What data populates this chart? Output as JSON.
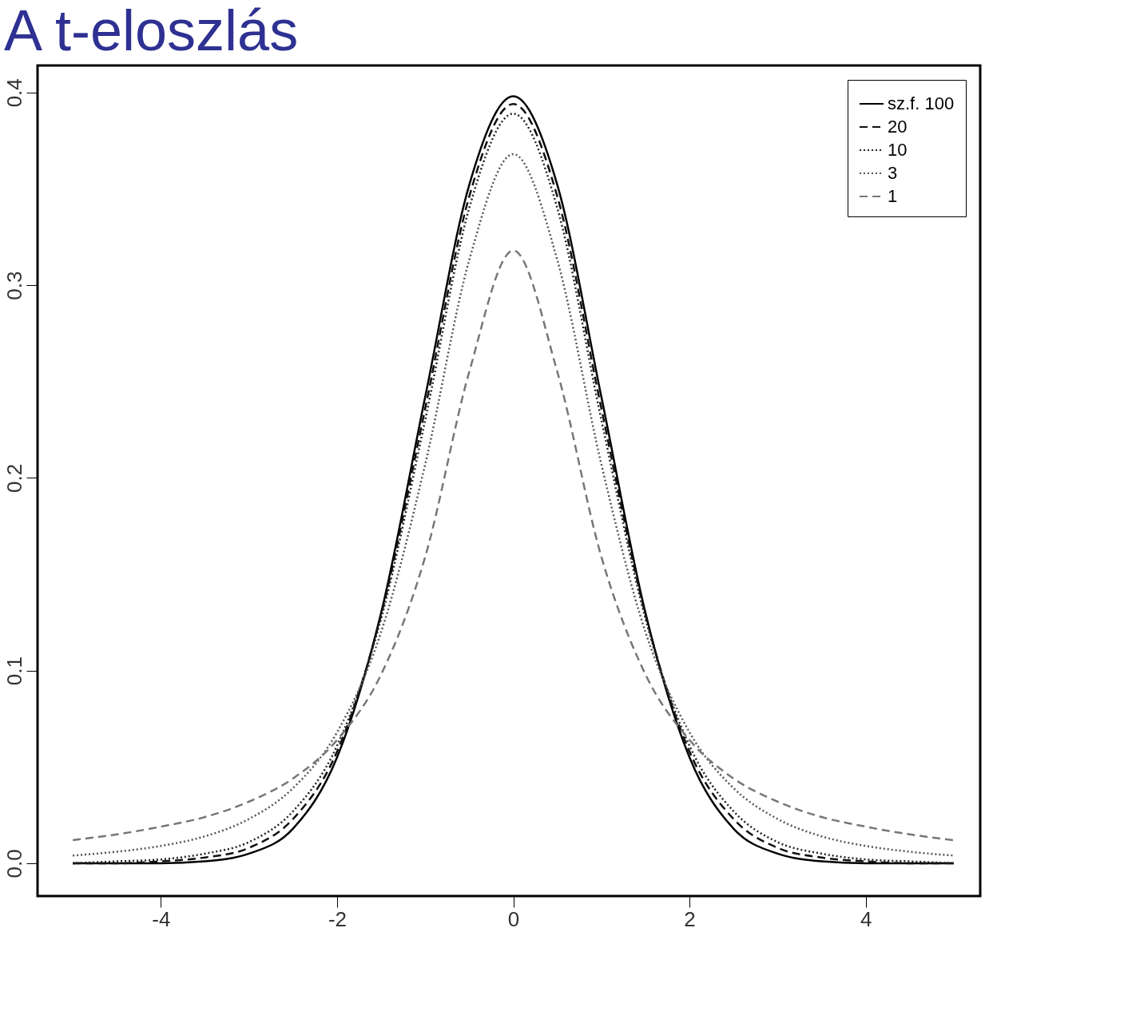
{
  "chart_data": {
    "type": "line",
    "title": "A t-eloszlás",
    "x": [
      -5,
      -4.5,
      -4,
      -3.5,
      -3,
      -2.5,
      -2,
      -1.5,
      -1,
      -0.5,
      0,
      0.5,
      1,
      1.5,
      2,
      2.5,
      3,
      3.5,
      4,
      4.5,
      5
    ],
    "series": [
      {
        "name": "sz.f. 100",
        "color": "#000000",
        "line_style": "solid",
        "values": [
          0,
          0,
          0,
          0.001,
          0.005,
          0.018,
          0.055,
          0.13,
          0.242,
          0.352,
          0.398,
          0.352,
          0.242,
          0.13,
          0.055,
          0.018,
          0.005,
          0.001,
          0,
          0,
          0
        ]
      },
      {
        "name": "20",
        "color": "#111111",
        "line_style": "dashed",
        "values": [
          0,
          0,
          0.001,
          0.003,
          0.008,
          0.023,
          0.058,
          0.129,
          0.236,
          0.346,
          0.394,
          0.346,
          0.236,
          0.129,
          0.058,
          0.023,
          0.008,
          0.003,
          0.001,
          0,
          0
        ]
      },
      {
        "name": "10",
        "color": "#222222",
        "line_style": "dotted",
        "values": [
          0.0,
          0.001,
          0.002,
          0.005,
          0.011,
          0.027,
          0.061,
          0.127,
          0.23,
          0.34,
          0.389,
          0.34,
          0.23,
          0.127,
          0.061,
          0.027,
          0.011,
          0.005,
          0.002,
          0.001,
          0.0
        ]
      },
      {
        "name": "3",
        "color": "#555555",
        "line_style": "dotted",
        "values": [
          0.004,
          0.006,
          0.009,
          0.014,
          0.023,
          0.039,
          0.068,
          0.12,
          0.207,
          0.313,
          0.368,
          0.313,
          0.207,
          0.12,
          0.068,
          0.039,
          0.023,
          0.014,
          0.009,
          0.006,
          0.004
        ]
      },
      {
        "name": "1",
        "color": "#777777",
        "line_style": "dashed",
        "values": [
          0.012,
          0.015,
          0.019,
          0.024,
          0.032,
          0.044,
          0.064,
          0.098,
          0.159,
          0.255,
          0.318,
          0.255,
          0.159,
          0.098,
          0.064,
          0.044,
          0.032,
          0.024,
          0.019,
          0.015,
          0.012
        ]
      }
    ],
    "xlim": [
      -5.4,
      5.3
    ],
    "ylim": [
      -0.017,
      0.414
    ],
    "xticks": [
      -4,
      -2,
      0,
      2,
      4
    ],
    "yticks": [
      {
        "value": 0,
        "label": "0.0"
      },
      {
        "value": 0.1,
        "label": "0.1"
      },
      {
        "value": 0.2,
        "label": "0.2"
      },
      {
        "value": 0.3,
        "label": "0.3"
      },
      {
        "value": 0.4,
        "label": "0.4"
      }
    ],
    "legend": "top right",
    "grid": false
  }
}
